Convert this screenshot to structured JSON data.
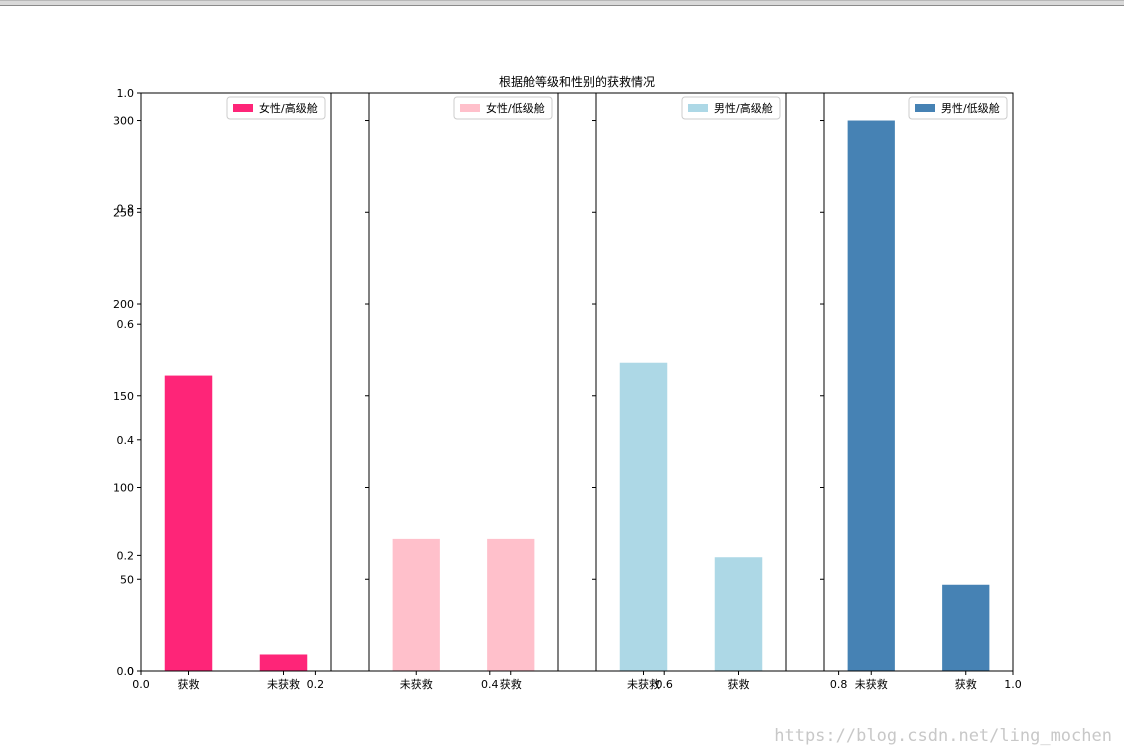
{
  "chart_data": {
    "type": "bar",
    "title": "根据舱等级和性别的获救情况",
    "background_axis": {
      "xlim": [
        0,
        1
      ],
      "ylim": [
        0,
        1
      ],
      "xticks": [
        "0.0",
        "0.2",
        "0.4",
        "0.6",
        "0.8",
        "1.0"
      ],
      "yticks": [
        "0.0",
        "0.2",
        "0.4",
        "0.6",
        "0.8",
        "1.0"
      ]
    },
    "ylim": [
      0,
      315
    ],
    "yticks": [
      0,
      50,
      100,
      150,
      200,
      250,
      300
    ],
    "legend_position": "upper right",
    "grid": false,
    "subplots": [
      {
        "legend": "女性/高级舱",
        "color": "#fe2578",
        "categories": [
          "获救",
          "未获救"
        ],
        "values": [
          161,
          9
        ]
      },
      {
        "legend": "女性/低级舱",
        "color": "#ffc0cb",
        "categories": [
          "未获救",
          "获救"
        ],
        "values": [
          72,
          72
        ]
      },
      {
        "legend": "男性/高级舱",
        "color": "#add8e6",
        "categories": [
          "未获救",
          "获救"
        ],
        "values": [
          168,
          62
        ]
      },
      {
        "legend": "男性/低级舱",
        "color": "#4682b4",
        "categories": [
          "未获救",
          "获救"
        ],
        "values": [
          300,
          47
        ]
      }
    ]
  },
  "watermark": "https://blog.csdn.net/ling_mochen"
}
